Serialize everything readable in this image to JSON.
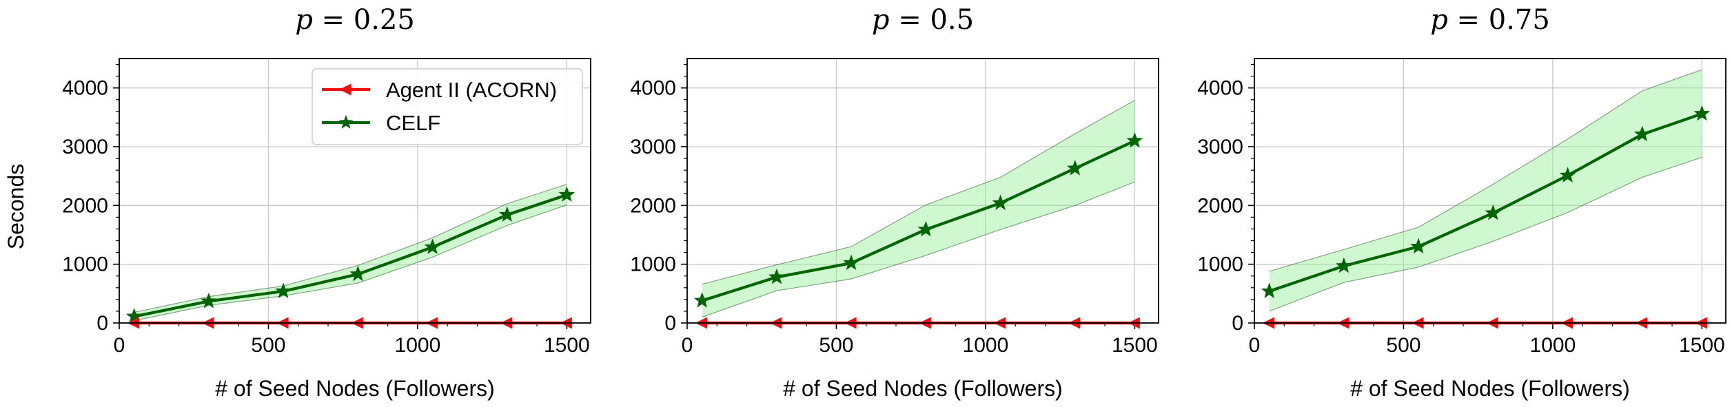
{
  "figure": {
    "ylabel": "Seconds",
    "legend_location": "top-right of first panel",
    "grid": true
  },
  "colors": {
    "agent": "#ee1111",
    "celf": "#006400",
    "band": "#90ee90",
    "grid": "#c8c8c8"
  },
  "chart_data": [
    {
      "type": "line",
      "title_var": "p",
      "title_value": "= 0.25",
      "xlabel": "# of Seed Nodes (Followers)",
      "ylabel": "Seconds",
      "xlim": [
        0,
        1580
      ],
      "ylim": [
        0,
        4500
      ],
      "xticks": [
        0,
        500,
        1000,
        1500
      ],
      "yticks": [
        0,
        1000,
        2000,
        3000,
        4000
      ],
      "x": [
        50,
        300,
        550,
        800,
        1050,
        1300,
        1500
      ],
      "show_legend": true,
      "series": [
        {
          "name": "Agent II (ACORN)",
          "color": "#ee1111",
          "marker": "triangle-left",
          "values": [
            0,
            0,
            0,
            0,
            0,
            0,
            0
          ]
        },
        {
          "name": "CELF",
          "color": "#006400",
          "marker": "star",
          "values": [
            110,
            370,
            540,
            830,
            1290,
            1840,
            2180
          ],
          "band_low": [
            40,
            300,
            460,
            680,
            1120,
            1660,
            2010
          ],
          "band_high": [
            180,
            450,
            630,
            980,
            1450,
            2030,
            2360
          ]
        }
      ]
    },
    {
      "type": "line",
      "title_var": "p",
      "title_value": "= 0.5",
      "xlabel": "# of Seed Nodes (Followers)",
      "ylabel": "",
      "xlim": [
        0,
        1580
      ],
      "ylim": [
        0,
        4500
      ],
      "xticks": [
        0,
        500,
        1000,
        1500
      ],
      "yticks": [
        0,
        1000,
        2000,
        3000,
        4000
      ],
      "x": [
        50,
        300,
        550,
        800,
        1050,
        1300,
        1500
      ],
      "show_legend": false,
      "series": [
        {
          "name": "Agent II (ACORN)",
          "color": "#ee1111",
          "marker": "triangle-left",
          "values": [
            0,
            0,
            0,
            0,
            0,
            0,
            0
          ]
        },
        {
          "name": "CELF",
          "color": "#006400",
          "marker": "star",
          "values": [
            380,
            780,
            1020,
            1590,
            2040,
            2630,
            3100
          ],
          "band_low": [
            100,
            550,
            750,
            1150,
            1590,
            2000,
            2400
          ],
          "band_high": [
            660,
            990,
            1300,
            2010,
            2480,
            3220,
            3790
          ]
        }
      ]
    },
    {
      "type": "line",
      "title_var": "p",
      "title_value": "= 0.75",
      "xlabel": "# of Seed Nodes (Followers)",
      "ylabel": "",
      "xlim": [
        0,
        1580
      ],
      "ylim": [
        0,
        4500
      ],
      "xticks": [
        0,
        500,
        1000,
        1500
      ],
      "yticks": [
        0,
        1000,
        2000,
        3000,
        4000
      ],
      "x": [
        50,
        300,
        550,
        800,
        1050,
        1300,
        1500
      ],
      "show_legend": false,
      "series": [
        {
          "name": "Agent II (ACORN)",
          "color": "#ee1111",
          "marker": "triangle-left",
          "values": [
            0,
            0,
            0,
            0,
            0,
            0,
            0
          ]
        },
        {
          "name": "CELF",
          "color": "#006400",
          "marker": "star",
          "values": [
            540,
            970,
            1300,
            1870,
            2510,
            3210,
            3560
          ],
          "band_low": [
            200,
            690,
            950,
            1390,
            1880,
            2480,
            2820
          ],
          "band_high": [
            880,
            1250,
            1630,
            2360,
            3130,
            3950,
            4310
          ]
        }
      ]
    }
  ]
}
